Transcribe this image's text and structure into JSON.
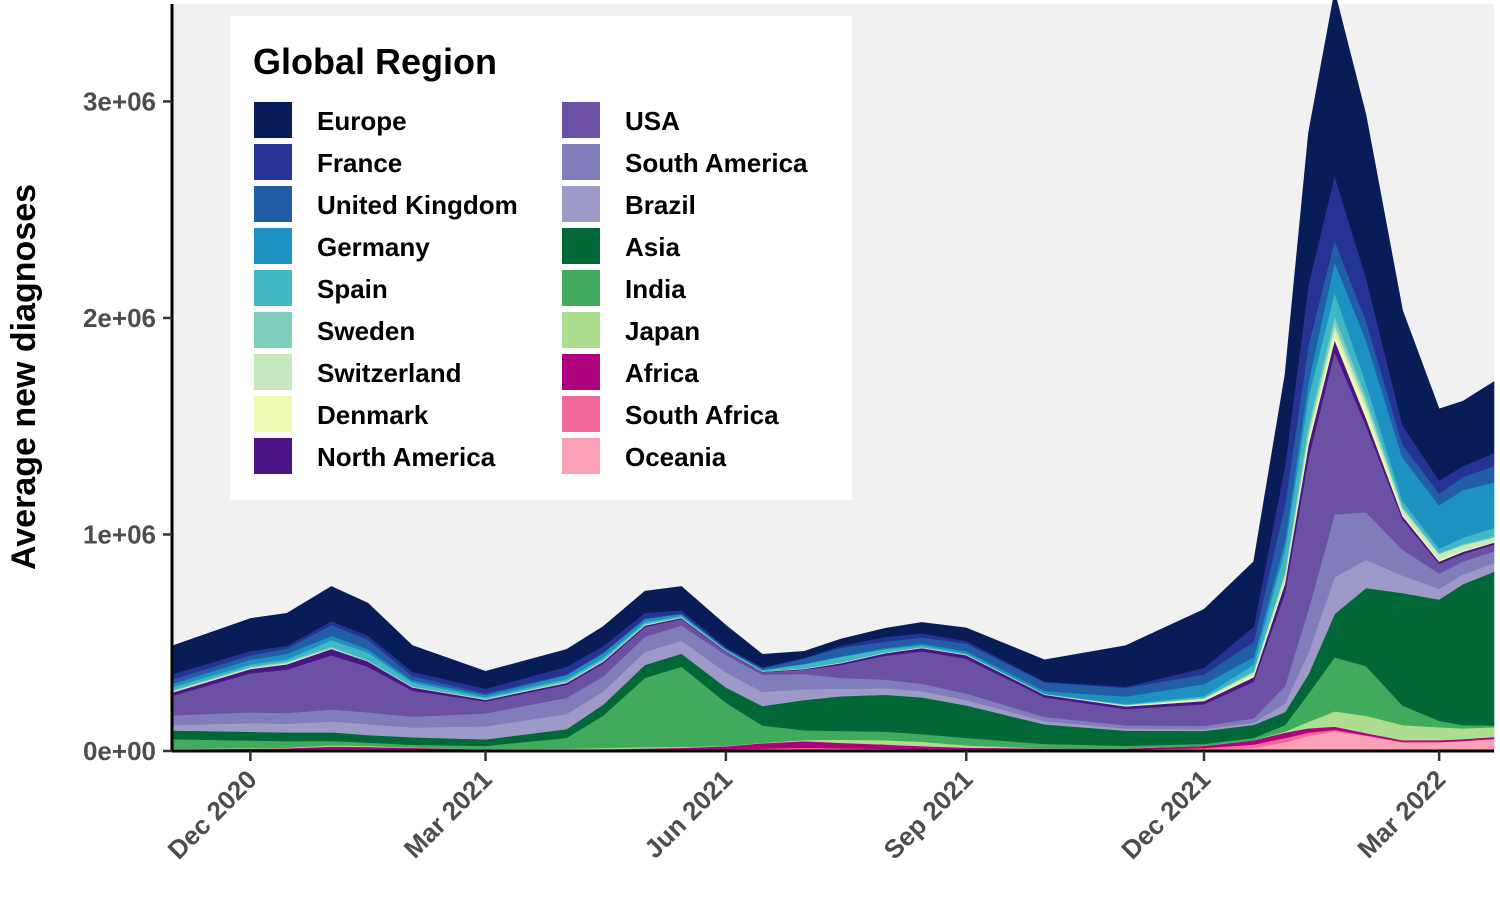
{
  "chart_data": {
    "type": "area",
    "stacked": true,
    "title": "",
    "xlabel": "",
    "ylabel": "Average new diagnoses",
    "ylim": [
      0,
      3450000
    ],
    "y_ticks": [
      0,
      1000000,
      2000000,
      3000000
    ],
    "y_tick_labels": [
      "0e+00",
      "1e+06",
      "2e+06",
      "3e+06"
    ],
    "x_ticks": [
      "2020-12-01",
      "2021-03-01",
      "2021-06-01",
      "2021-09-01",
      "2021-12-01",
      "2022-03-01"
    ],
    "x_tick_labels": [
      "Dec 2020",
      "Mar 2021",
      "Jun 2021",
      "Sep 2021",
      "Dec 2021",
      "Mar 2022"
    ],
    "xlim": [
      "2020-11-01",
      "2022-03-22"
    ],
    "grid": false,
    "legend": {
      "title": "Global Region",
      "placement": "top-left",
      "columns": 2
    },
    "x": [
      "2020-11-01",
      "2020-12-01",
      "2020-12-15",
      "2021-01-01",
      "2021-01-15",
      "2021-02-01",
      "2021-03-01",
      "2021-04-01",
      "2021-04-15",
      "2021-05-01",
      "2021-05-15",
      "2021-06-01",
      "2021-06-15",
      "2021-07-01",
      "2021-07-15",
      "2021-08-01",
      "2021-08-15",
      "2021-09-01",
      "2021-10-01",
      "2021-11-01",
      "2021-12-01",
      "2021-12-20",
      "2022-01-01",
      "2022-01-10",
      "2022-01-20",
      "2022-02-01",
      "2022-02-15",
      "2022-03-01",
      "2022-03-10",
      "2022-03-22"
    ],
    "series": [
      {
        "name": "Oceania",
        "color": "#fba0b6",
        "values": [
          1000,
          1000,
          1000,
          1000,
          1000,
          1000,
          1000,
          1000,
          1000,
          1000,
          1000,
          1000,
          1000,
          1000,
          1000,
          2000,
          3000,
          4000,
          5000,
          6000,
          8000,
          15000,
          40000,
          70000,
          90000,
          70000,
          40000,
          40000,
          45000,
          55000
        ]
      },
      {
        "name": "South Africa",
        "color": "#f4679b",
        "values": [
          2000,
          3000,
          4000,
          8000,
          8000,
          6000,
          2000,
          2000,
          2000,
          3000,
          4000,
          6000,
          10000,
          15000,
          12000,
          8000,
          5000,
          2000,
          1000,
          1000,
          6000,
          15000,
          20000,
          15000,
          8000,
          3000,
          2000,
          2000,
          2000,
          2000
        ]
      },
      {
        "name": "Africa",
        "color": "#ae017e",
        "values": [
          5000,
          7000,
          8000,
          12000,
          10000,
          8000,
          5000,
          5000,
          6000,
          8000,
          10000,
          15000,
          25000,
          30000,
          25000,
          20000,
          15000,
          10000,
          6000,
          5000,
          10000,
          20000,
          25000,
          20000,
          15000,
          10000,
          8000,
          8000,
          8000,
          8000
        ]
      },
      {
        "name": "Japan",
        "color": "#addd8e",
        "values": [
          2000,
          3000,
          3000,
          6000,
          5000,
          2000,
          1000,
          3000,
          5000,
          6000,
          5000,
          2000,
          2000,
          5000,
          15000,
          20000,
          20000,
          10000,
          1000,
          200,
          200,
          1000,
          5000,
          30000,
          70000,
          80000,
          70000,
          60000,
          50000,
          45000
        ]
      },
      {
        "name": "India",
        "color": "#41ab5d",
        "values": [
          45000,
          35000,
          30000,
          20000,
          15000,
          12000,
          15000,
          50000,
          150000,
          320000,
          370000,
          200000,
          80000,
          45000,
          40000,
          40000,
          35000,
          35000,
          20000,
          12000,
          9000,
          10000,
          30000,
          130000,
          250000,
          230000,
          90000,
          30000,
          15000,
          8000
        ]
      },
      {
        "name": "Asia",
        "color": "#006837",
        "values": [
          40000,
          40000,
          40000,
          40000,
          35000,
          35000,
          30000,
          40000,
          50000,
          60000,
          60000,
          70000,
          90000,
          140000,
          160000,
          170000,
          170000,
          150000,
          90000,
          70000,
          60000,
          60000,
          60000,
          90000,
          200000,
          360000,
          520000,
          560000,
          650000,
          710000
        ]
      },
      {
        "name": "Brazil",
        "color": "#9e9ac8",
        "values": [
          25000,
          40000,
          40000,
          50000,
          50000,
          45000,
          60000,
          70000,
          60000,
          60000,
          60000,
          70000,
          65000,
          50000,
          35000,
          30000,
          28000,
          25000,
          15000,
          10000,
          8000,
          10000,
          40000,
          100000,
          170000,
          130000,
          80000,
          50000,
          45000,
          40000
        ]
      },
      {
        "name": "South America",
        "color": "#807dba",
        "values": [
          45000,
          50000,
          50000,
          55000,
          55000,
          50000,
          60000,
          75000,
          70000,
          70000,
          70000,
          80000,
          80000,
          70000,
          50000,
          40000,
          35000,
          30000,
          20000,
          15000,
          15000,
          20000,
          80000,
          200000,
          290000,
          220000,
          120000,
          70000,
          60000,
          55000
        ]
      },
      {
        "name": "USA",
        "color": "#6a51a3",
        "values": [
          90000,
          180000,
          200000,
          250000,
          210000,
          120000,
          55000,
          60000,
          60000,
          45000,
          30000,
          15000,
          12000,
          20000,
          60000,
          110000,
          150000,
          160000,
          90000,
          75000,
          100000,
          170000,
          430000,
          700000,
          750000,
          400000,
          140000,
          45000,
          35000,
          30000
        ]
      },
      {
        "name": "North America",
        "color": "#4a1486",
        "values": [
          15000,
          20000,
          25000,
          30000,
          25000,
          15000,
          8000,
          9000,
          9000,
          7000,
          5000,
          3000,
          2000,
          3000,
          8000,
          12000,
          15000,
          17000,
          12000,
          12000,
          15000,
          20000,
          45000,
          60000,
          55000,
          35000,
          15000,
          10000,
          10000,
          10000
        ]
      },
      {
        "name": "Denmark",
        "color": "#edf8b1",
        "values": [
          1000,
          2000,
          3000,
          2000,
          1000,
          1000,
          1000,
          1000,
          1000,
          1000,
          1000,
          500,
          500,
          1000,
          1000,
          1000,
          1000,
          500,
          1000,
          3000,
          6000,
          12000,
          18000,
          30000,
          40000,
          45000,
          15000,
          10000,
          5000,
          3000
        ]
      },
      {
        "name": "Switzerland",
        "color": "#c7e9c0",
        "values": [
          5000,
          4000,
          4000,
          2000,
          1000,
          1000,
          1000,
          2000,
          2000,
          2000,
          1000,
          500,
          500,
          1000,
          2000,
          2000,
          2000,
          2000,
          1000,
          3000,
          6000,
          10000,
          20000,
          25000,
          30000,
          25000,
          20000,
          25000,
          25000,
          20000
        ]
      },
      {
        "name": "Sweden",
        "color": "#7fcdbb",
        "values": [
          4000,
          5000,
          6000,
          6000,
          4000,
          3000,
          4000,
          6000,
          6000,
          5000,
          3000,
          1000,
          500,
          500,
          1000,
          1000,
          1000,
          1000,
          1000,
          1500,
          3000,
          6000,
          15000,
          35000,
          40000,
          30000,
          10000,
          5000,
          5000,
          5000
        ]
      },
      {
        "name": "Spain",
        "color": "#41b6c4",
        "values": [
          15000,
          10000,
          10000,
          30000,
          35000,
          18000,
          6000,
          9000,
          10000,
          8000,
          5000,
          4000,
          6000,
          20000,
          25000,
          15000,
          8000,
          5000,
          2000,
          3000,
          8000,
          30000,
          100000,
          130000,
          110000,
          60000,
          25000,
          20000,
          30000,
          40000
        ]
      },
      {
        "name": "Germany",
        "color": "#1d91c0",
        "values": [
          15000,
          22000,
          25000,
          20000,
          15000,
          10000,
          10000,
          18000,
          20000,
          15000,
          8000,
          3000,
          1000,
          1000,
          2000,
          4000,
          8000,
          10000,
          12000,
          35000,
          55000,
          35000,
          40000,
          70000,
          140000,
          200000,
          200000,
          200000,
          220000,
          210000
        ]
      },
      {
        "name": "United Kingdom",
        "color": "#225ea8",
        "values": [
          20000,
          20000,
          25000,
          50000,
          45000,
          20000,
          7000,
          3000,
          2500,
          2000,
          2000,
          3000,
          8000,
          25000,
          40000,
          30000,
          28000,
          35000,
          40000,
          40000,
          45000,
          70000,
          170000,
          170000,
          100000,
          90000,
          60000,
          55000,
          60000,
          75000
        ]
      },
      {
        "name": "France",
        "color": "#253494",
        "values": [
          25000,
          20000,
          12000,
          18000,
          18000,
          20000,
          22000,
          35000,
          30000,
          25000,
          15000,
          7000,
          3000,
          3000,
          10000,
          22000,
          20000,
          12000,
          4000,
          5000,
          30000,
          70000,
          180000,
          280000,
          300000,
          200000,
          90000,
          60000,
          50000,
          60000
        ]
      },
      {
        "name": "Europe",
        "color": "#081d58",
        "values": [
          130000,
          150000,
          150000,
          160000,
          150000,
          120000,
          80000,
          80000,
          90000,
          100000,
          110000,
          100000,
          60000,
          30000,
          30000,
          40000,
          50000,
          60000,
          100000,
          190000,
          270000,
          300000,
          420000,
          700000,
          850000,
          750000,
          530000,
          330000,
          300000,
          330000
        ]
      }
    ]
  }
}
